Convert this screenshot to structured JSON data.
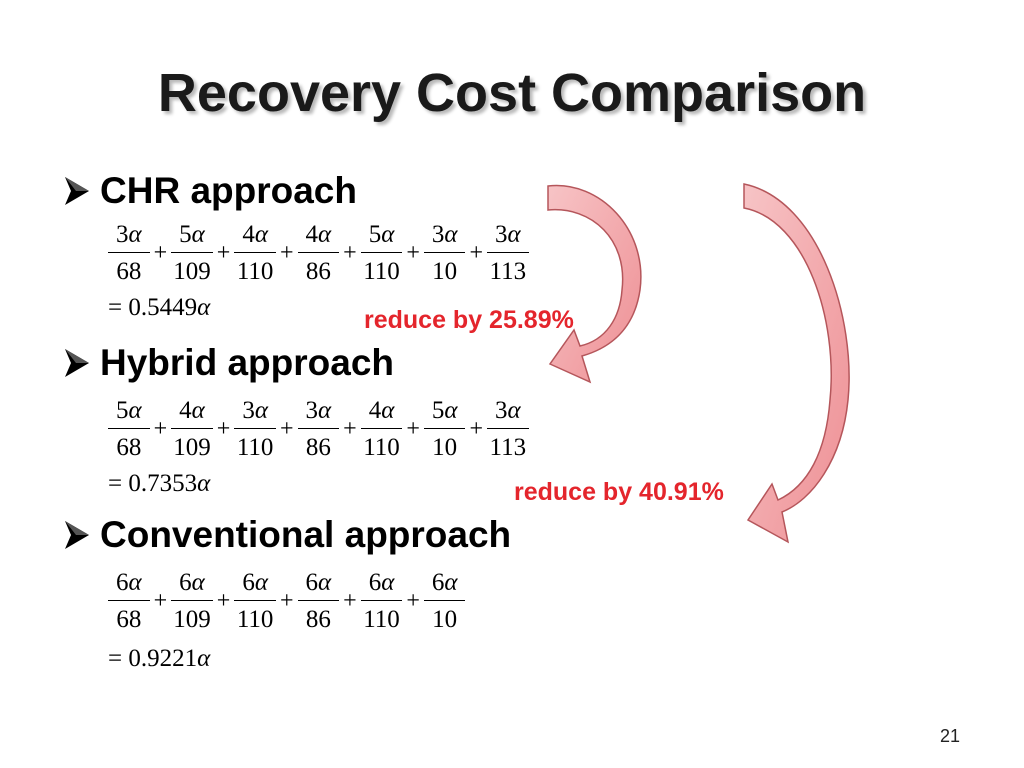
{
  "slide": {
    "title": "Recovery Cost Comparison",
    "page_number": "21"
  },
  "sections": [
    {
      "heading": "CHR approach",
      "terms": [
        {
          "num": "3",
          "den": "68"
        },
        {
          "num": "5",
          "den": "109"
        },
        {
          "num": "4",
          "den": "110"
        },
        {
          "num": "4",
          "den": "86"
        },
        {
          "num": "5",
          "den": "110"
        },
        {
          "num": "3",
          "den": "10"
        },
        {
          "num": "3",
          "den": "113"
        }
      ],
      "result": "= 0.5449"
    },
    {
      "heading": "Hybrid approach",
      "terms": [
        {
          "num": "5",
          "den": "68"
        },
        {
          "num": "4",
          "den": "109"
        },
        {
          "num": "3",
          "den": "110"
        },
        {
          "num": "3",
          "den": "86"
        },
        {
          "num": "4",
          "den": "110"
        },
        {
          "num": "5",
          "den": "10"
        },
        {
          "num": "3",
          "den": "113"
        }
      ],
      "result": "= 0.7353"
    },
    {
      "heading": "Conventional approach",
      "terms": [
        {
          "num": "6",
          "den": "68"
        },
        {
          "num": "6",
          "den": "109"
        },
        {
          "num": "6",
          "den": "110"
        },
        {
          "num": "6",
          "den": "86"
        },
        {
          "num": "6",
          "den": "110"
        },
        {
          "num": "6",
          "den": "10"
        }
      ],
      "result": "= 0.9221"
    }
  ],
  "symbols": {
    "alpha": "α",
    "plus": "+"
  },
  "annotations": {
    "reduce_1": "reduce by 25.89%",
    "reduce_2": "reduce by 40.91%"
  },
  "colors": {
    "accent_red": "#e4252c",
    "arrow_fill": "#f2a9ac",
    "arrow_stroke": "#b5565b"
  }
}
